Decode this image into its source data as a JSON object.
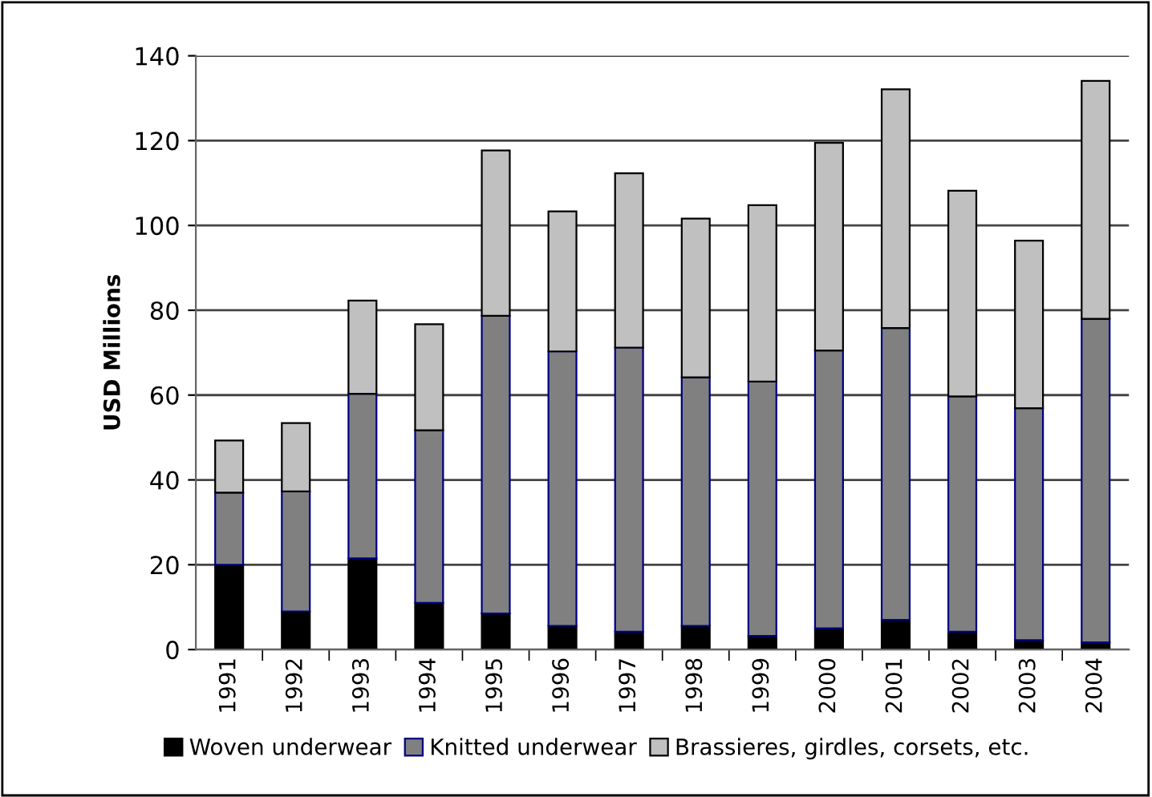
{
  "chart_data": {
    "type": "bar",
    "stacked": true,
    "ylabel": "USD Millions",
    "categories": [
      "1991",
      "1992",
      "1993",
      "1994",
      "1995",
      "1996",
      "1997",
      "1998",
      "1999",
      "2000",
      "2001",
      "2002",
      "2003",
      "2004"
    ],
    "series": [
      {
        "name": "Woven underwear",
        "color": "#000000",
        "values": [
          20,
          9,
          21.5,
          11,
          8.5,
          5.6,
          4.2,
          5.6,
          3.2,
          5,
          7,
          4.2,
          2.2,
          1.7
        ]
      },
      {
        "name": "Knitted underwear",
        "color": "#808080",
        "values": [
          17,
          28.3,
          38.8,
          40.7,
          70.2,
          64.7,
          67,
          58.6,
          60,
          65.5,
          68.8,
          55.5,
          54.7,
          76.3
        ]
      },
      {
        "name": "Brassieres, girdles, corsets, etc.",
        "color": "#c0c0c0",
        "values": [
          12.3,
          16.1,
          22,
          25,
          39,
          33,
          41.1,
          37.4,
          41.6,
          49,
          56.3,
          48.5,
          39.5,
          56.1
        ]
      }
    ],
    "ylim": [
      0,
      140
    ],
    "yticks": [
      0,
      20,
      40,
      60,
      80,
      100,
      120,
      140
    ],
    "grid": "y",
    "legend": "bottom"
  }
}
